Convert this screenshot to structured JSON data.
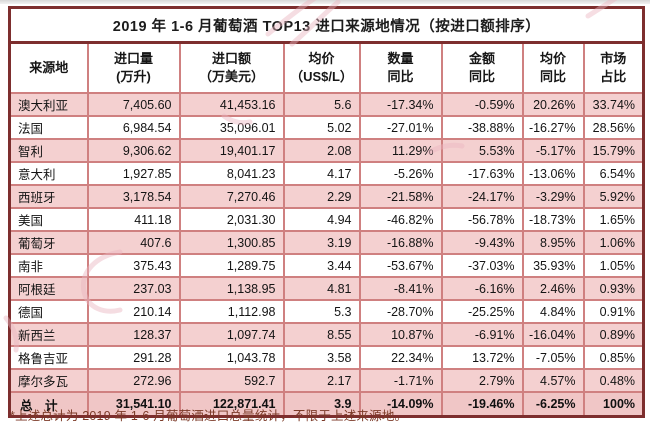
{
  "colors": {
    "outer_border": "#7d2e2e",
    "inner_border": "#cf8080",
    "row_pink": "#f4d0d0",
    "total_row_pink": "#f0c6c6",
    "title_text": "#1c1c1c",
    "footnote_text": "#7c3a28",
    "watermark_pink": "#eab6c0"
  },
  "chart_data": {
    "type": "table",
    "title": "2019 年 1-6 月葡萄酒 TOP13 进口来源地情况（按进口额排序）",
    "columns": [
      {
        "l1": "来源地",
        "l2": ""
      },
      {
        "l1": "进口量",
        "l2": "(万升)"
      },
      {
        "l1": "进口额",
        "l2": "（万美元）"
      },
      {
        "l1": "均价",
        "l2": "（US$/L）"
      },
      {
        "l1": "数量",
        "l2": "同比"
      },
      {
        "l1": "金额",
        "l2": "同比"
      },
      {
        "l1": "均价",
        "l2": "同比"
      },
      {
        "l1": "市场",
        "l2": "占比"
      }
    ],
    "rows": [
      [
        "澳大利亚",
        "7,405.60",
        "41,453.16",
        "5.6",
        "-17.34%",
        "-0.59%",
        "20.26%",
        "33.74%"
      ],
      [
        "法国",
        "6,984.54",
        "35,096.01",
        "5.02",
        "-27.01%",
        "-38.88%",
        "-16.27%",
        "28.56%"
      ],
      [
        "智利",
        "9,306.62",
        "19,401.17",
        "2.08",
        "11.29%",
        "5.53%",
        "-5.17%",
        "15.79%"
      ],
      [
        "意大利",
        "1,927.85",
        "8,041.23",
        "4.17",
        "-5.26%",
        "-17.63%",
        "-13.06%",
        "6.54%"
      ],
      [
        "西班牙",
        "3,178.54",
        "7,270.46",
        "2.29",
        "-21.58%",
        "-24.17%",
        "-3.29%",
        "5.92%"
      ],
      [
        "美国",
        "411.18",
        "2,031.30",
        "4.94",
        "-46.82%",
        "-56.78%",
        "-18.73%",
        "1.65%"
      ],
      [
        "葡萄牙",
        "407.6",
        "1,300.85",
        "3.19",
        "-16.88%",
        "-9.43%",
        "8.95%",
        "1.06%"
      ],
      [
        "南非",
        "375.43",
        "1,289.75",
        "3.44",
        "-53.67%",
        "-37.03%",
        "35.93%",
        "1.05%"
      ],
      [
        "阿根廷",
        "237.03",
        "1,138.95",
        "4.81",
        "-8.41%",
        "-6.16%",
        "2.46%",
        "0.93%"
      ],
      [
        "德国",
        "210.14",
        "1,112.98",
        "5.3",
        "-28.70%",
        "-25.25%",
        "4.84%",
        "0.91%"
      ],
      [
        "新西兰",
        "128.37",
        "1,097.74",
        "8.55",
        "10.87%",
        "-6.91%",
        "-16.04%",
        "0.89%"
      ],
      [
        "格鲁吉亚",
        "291.28",
        "1,043.78",
        "3.58",
        "22.34%",
        "13.72%",
        "-7.05%",
        "0.85%"
      ],
      [
        "摩尔多瓦",
        "272.96",
        "592.7",
        "2.17",
        "-1.71%",
        "2.79%",
        "4.57%",
        "0.48%"
      ]
    ],
    "total": [
      "总　计",
      "31,541.10",
      "122,871.41",
      "3.9",
      "-14.09%",
      "-19.46%",
      "-6.25%",
      "100%"
    ],
    "footnote": "*上述总计为 2019 年 1-6 月葡萄酒进口总量统计，不限于上述来源地。",
    "layout_hints": {
      "sorted_by": "进口额",
      "alternating_row_shading": "odd rows pink",
      "total_row_shaded": true
    }
  }
}
